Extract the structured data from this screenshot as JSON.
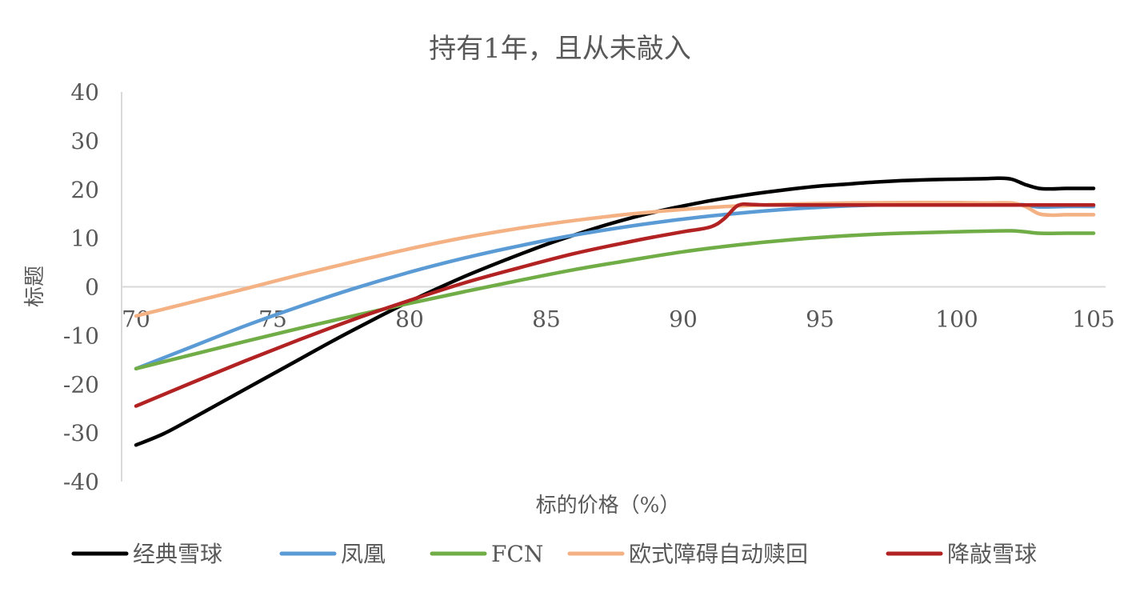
{
  "chart_data": {
    "type": "line",
    "title": "持有1年，且从未敲入",
    "xlabel": "标的价格（%）",
    "ylabel": "标题",
    "xlim": [
      70,
      105
    ],
    "ylim": [
      -40,
      40
    ],
    "x_ticks": [
      "70",
      "75",
      "80",
      "85",
      "90",
      "95",
      "100",
      "105"
    ],
    "y_ticks": [
      "40",
      "30",
      "20",
      "10",
      "0",
      "-10",
      "-20",
      "-30",
      "-40"
    ],
    "grid": false,
    "legend": "bottom",
    "series": [
      {
        "name": "经典雪球",
        "color": "#000000",
        "points": [
          [
            70,
            -32.5
          ],
          [
            71,
            -30.2
          ],
          [
            72,
            -27.2
          ],
          [
            73,
            -24.1
          ],
          [
            74,
            -21.0
          ],
          [
            75,
            -17.9
          ],
          [
            76,
            -14.8
          ],
          [
            77,
            -11.7
          ],
          [
            78,
            -8.7
          ],
          [
            79,
            -5.8
          ],
          [
            80,
            -3.0
          ],
          [
            81,
            -0.4
          ],
          [
            82,
            2.1
          ],
          [
            83,
            4.4
          ],
          [
            84,
            6.6
          ],
          [
            85,
            8.7
          ],
          [
            86,
            10.6
          ],
          [
            87,
            12.4
          ],
          [
            88,
            14.0
          ],
          [
            89,
            15.4
          ],
          [
            90,
            16.6
          ],
          [
            91,
            17.7
          ],
          [
            92,
            18.6
          ],
          [
            93,
            19.4
          ],
          [
            94,
            20.1
          ],
          [
            95,
            20.7
          ],
          [
            96,
            21.1
          ],
          [
            97,
            21.5
          ],
          [
            98,
            21.8
          ],
          [
            99,
            22.0
          ],
          [
            100,
            22.1
          ],
          [
            101,
            22.2
          ],
          [
            101.5,
            22.3
          ],
          [
            102,
            22.1
          ],
          [
            102.5,
            21.0
          ],
          [
            103,
            20.2
          ],
          [
            103.5,
            20.1
          ],
          [
            104,
            20.2
          ],
          [
            105,
            20.2
          ]
        ]
      },
      {
        "name": "凤凰",
        "color": "#5B9BD5",
        "points": [
          [
            70,
            -16.8
          ],
          [
            72,
            -12.4
          ],
          [
            74,
            -8.0
          ],
          [
            76,
            -4.0
          ],
          [
            78,
            -0.3
          ],
          [
            80,
            3.0
          ],
          [
            82,
            5.9
          ],
          [
            84,
            8.4
          ],
          [
            86,
            10.6
          ],
          [
            88,
            12.4
          ],
          [
            90,
            13.9
          ],
          [
            92,
            15.1
          ],
          [
            94,
            16.0
          ],
          [
            96,
            16.6
          ],
          [
            98,
            16.9
          ],
          [
            100,
            17.0
          ],
          [
            101,
            17.0
          ],
          [
            102,
            17.0
          ],
          [
            102.5,
            16.8
          ],
          [
            103,
            16.4
          ],
          [
            104,
            16.5
          ],
          [
            105,
            16.5
          ]
        ]
      },
      {
        "name": "FCN",
        "color": "#70AD47",
        "points": [
          [
            70,
            -16.8
          ],
          [
            72,
            -14.0
          ],
          [
            74,
            -11.2
          ],
          [
            76,
            -8.5
          ],
          [
            78,
            -5.9
          ],
          [
            80,
            -3.4
          ],
          [
            82,
            -1.0
          ],
          [
            84,
            1.3
          ],
          [
            86,
            3.5
          ],
          [
            88,
            5.4
          ],
          [
            90,
            7.2
          ],
          [
            92,
            8.6
          ],
          [
            94,
            9.7
          ],
          [
            96,
            10.5
          ],
          [
            98,
            11.0
          ],
          [
            100,
            11.3
          ],
          [
            102,
            11.5
          ],
          [
            103,
            11.0
          ],
          [
            104,
            11.0
          ],
          [
            105,
            11.0
          ]
        ]
      },
      {
        "name": "欧式障碍自动赎回",
        "color": "#F4B183",
        "points": [
          [
            70,
            -6.0
          ],
          [
            72,
            -3.2
          ],
          [
            74,
            -0.4
          ],
          [
            76,
            2.5
          ],
          [
            78,
            5.2
          ],
          [
            80,
            7.8
          ],
          [
            82,
            10.1
          ],
          [
            84,
            12.0
          ],
          [
            86,
            13.6
          ],
          [
            88,
            14.9
          ],
          [
            90,
            15.9
          ],
          [
            92,
            16.6
          ],
          [
            94,
            17.0
          ],
          [
            96,
            17.2
          ],
          [
            98,
            17.3
          ],
          [
            100,
            17.3
          ],
          [
            101,
            17.2
          ],
          [
            102,
            17.2
          ],
          [
            102.5,
            16.5
          ],
          [
            103,
            15.0
          ],
          [
            103.5,
            14.7
          ],
          [
            104,
            14.8
          ],
          [
            105,
            14.8
          ]
        ]
      },
      {
        "name": "降敲雪球",
        "color": "#B22222",
        "points": [
          [
            70,
            -24.5
          ],
          [
            72,
            -19.8
          ],
          [
            74,
            -15.2
          ],
          [
            76,
            -10.8
          ],
          [
            78,
            -6.6
          ],
          [
            80,
            -2.8
          ],
          [
            82,
            0.8
          ],
          [
            84,
            3.9
          ],
          [
            86,
            6.8
          ],
          [
            88,
            9.2
          ],
          [
            89,
            10.3
          ],
          [
            90,
            11.3
          ],
          [
            91,
            12.3
          ],
          [
            91.5,
            14.0
          ],
          [
            92,
            16.7
          ],
          [
            92.5,
            16.9
          ],
          [
            93,
            16.8
          ],
          [
            95,
            16.8
          ],
          [
            100,
            16.8
          ],
          [
            105,
            16.8
          ]
        ]
      }
    ]
  }
}
